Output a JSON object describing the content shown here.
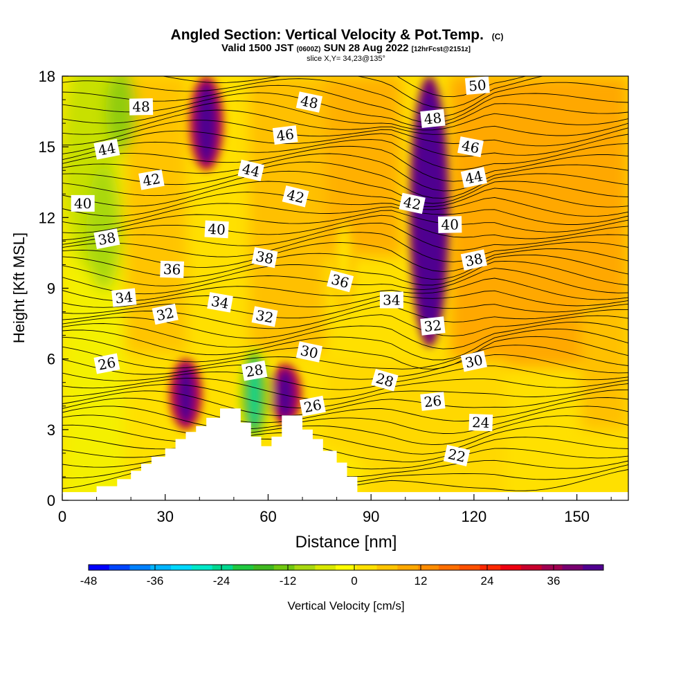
{
  "chart_data": {
    "type": "heatmap",
    "title": "Angled Section: Vertical Velocity & Pot.Temp.",
    "title_tag": "(C)",
    "subtitle_a": "Valid 1500 JST",
    "subtitle_b": "(0600Z)",
    "subtitle_c": "SUN 28 Aug 2022",
    "subtitle_d": "[12hrFcst@2151z]",
    "subtitle2": "slice X,Y= 34,23@135°",
    "xlabel": "Distance [nm]",
    "ylabel": "Height [Kft MSL]",
    "xlim": [
      0,
      165
    ],
    "ylim": [
      0,
      18
    ],
    "x_ticks": [
      0,
      30,
      60,
      90,
      120,
      150
    ],
    "y_ticks": [
      0,
      3,
      6,
      9,
      12,
      15,
      18
    ],
    "colorbar": {
      "label": "Vertical Velocity [cm/s]",
      "min": -48,
      "max": 42,
      "step": 3,
      "ticks": [
        -48,
        -36,
        -24,
        -12,
        0,
        12,
        24,
        36
      ],
      "colors": [
        "#0000ff",
        "#0044ff",
        "#0080ff",
        "#00b4ff",
        "#00d8ff",
        "#00e8c8",
        "#00d890",
        "#20c840",
        "#40b820",
        "#70c810",
        "#a8d810",
        "#d8e800",
        "#ffff00",
        "#ffe000",
        "#ffc400",
        "#ffa800",
        "#ff8c00",
        "#ff6e00",
        "#ff5000",
        "#ff2800",
        "#ee0010",
        "#c8002c",
        "#a00050",
        "#780070",
        "#500090"
      ]
    },
    "wind_features": [
      {
        "x": 42,
        "z0": 14,
        "z1": 18,
        "w": 30
      },
      {
        "x": 36,
        "z0": 3,
        "z1": 6,
        "w": 27
      },
      {
        "x": 65,
        "z0": 3.2,
        "z1": 5.8,
        "w": 27
      },
      {
        "x": 107,
        "z0": 6.5,
        "z1": 18,
        "w": 42
      },
      {
        "x": 56,
        "z0": 2.5,
        "z1": 6.5,
        "w": -30
      },
      {
        "x": 82,
        "z0": 8,
        "z1": 12,
        "w": -9
      }
    ],
    "theta_labels": [
      {
        "value": "48",
        "x": 23,
        "z": 16.7
      },
      {
        "value": "48",
        "x": 72,
        "z": 16.9
      },
      {
        "value": "50",
        "x": 121,
        "z": 17.6
      },
      {
        "value": "48",
        "x": 108,
        "z": 16.2
      },
      {
        "value": "46",
        "x": 65,
        "z": 15.5
      },
      {
        "value": "46",
        "x": 119,
        "z": 15.0
      },
      {
        "value": "44",
        "x": 13,
        "z": 14.9
      },
      {
        "value": "44",
        "x": 55,
        "z": 14.0
      },
      {
        "value": "44",
        "x": 120,
        "z": 13.7
      },
      {
        "value": "42",
        "x": 26,
        "z": 13.6
      },
      {
        "value": "42",
        "x": 68,
        "z": 12.9
      },
      {
        "value": "42",
        "x": 102,
        "z": 12.6
      },
      {
        "value": "40",
        "x": 6,
        "z": 12.6
      },
      {
        "value": "40",
        "x": 45,
        "z": 11.5
      },
      {
        "value": "40",
        "x": 113,
        "z": 11.7
      },
      {
        "value": "38",
        "x": 13,
        "z": 11.1
      },
      {
        "value": "38",
        "x": 59,
        "z": 10.3
      },
      {
        "value": "38",
        "x": 120,
        "z": 10.2
      },
      {
        "value": "36",
        "x": 32,
        "z": 9.8
      },
      {
        "value": "36",
        "x": 81,
        "z": 9.3
      },
      {
        "value": "34",
        "x": 18,
        "z": 8.6
      },
      {
        "value": "34",
        "x": 46,
        "z": 8.4
      },
      {
        "value": "34",
        "x": 96,
        "z": 8.5
      },
      {
        "value": "32",
        "x": 30,
        "z": 7.9
      },
      {
        "value": "32",
        "x": 59,
        "z": 7.8
      },
      {
        "value": "32",
        "x": 108,
        "z": 7.4
      },
      {
        "value": "30",
        "x": 72,
        "z": 6.3
      },
      {
        "value": "30",
        "x": 120,
        "z": 5.9
      },
      {
        "value": "28",
        "x": 56,
        "z": 5.5
      },
      {
        "value": "28",
        "x": 94,
        "z": 5.1
      },
      {
        "value": "26",
        "x": 13,
        "z": 5.8
      },
      {
        "value": "26",
        "x": 73,
        "z": 4.0
      },
      {
        "value": "26",
        "x": 108,
        "z": 4.2
      },
      {
        "value": "24",
        "x": 122,
        "z": 3.3
      },
      {
        "value": "22",
        "x": 115,
        "z": 1.9
      }
    ]
  }
}
